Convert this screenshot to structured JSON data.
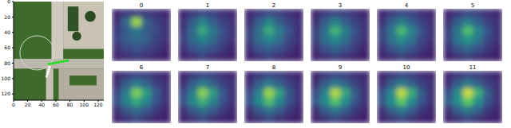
{
  "chart_data": [
    {
      "type": "scatter",
      "xlim": [
        0,
        128
      ],
      "ylim": [
        128,
        0
      ],
      "xticks": [
        0,
        20,
        40,
        60,
        80,
        100,
        120
      ],
      "yticks": [
        0,
        20,
        40,
        60,
        80,
        100,
        120
      ],
      "series": [
        {
          "color": "#ffffff",
          "x": [
            47,
            48,
            49,
            50,
            51
          ],
          "values": [
            97,
            94,
            91,
            88,
            85
          ]
        },
        {
          "color": "#22dd22",
          "x": [
            50,
            53,
            56,
            59,
            62,
            65,
            68,
            71,
            74,
            77
          ],
          "values": [
            81,
            80.5,
            80,
            79.5,
            79,
            78.5,
            78,
            77.5,
            77,
            76.5
          ]
        }
      ]
    },
    {
      "type": "heatmap",
      "title": "0",
      "cells": [
        [
          0.12,
          0.18,
          0.2,
          0.18,
          0.15,
          0.12
        ],
        [
          0.15,
          0.35,
          0.85,
          0.3,
          0.2,
          0.15
        ],
        [
          0.18,
          0.3,
          0.4,
          0.3,
          0.22,
          0.15
        ],
        [
          0.2,
          0.3,
          0.35,
          0.3,
          0.2,
          0.15
        ],
        [
          0.15,
          0.22,
          0.25,
          0.22,
          0.18,
          0.12
        ],
        [
          0.12,
          0.15,
          0.18,
          0.15,
          0.12,
          0.1
        ]
      ]
    },
    {
      "type": "heatmap",
      "title": "1",
      "cells": [
        [
          0.12,
          0.18,
          0.22,
          0.2,
          0.15,
          0.12
        ],
        [
          0.15,
          0.3,
          0.45,
          0.3,
          0.2,
          0.15
        ],
        [
          0.18,
          0.35,
          0.6,
          0.4,
          0.25,
          0.15
        ],
        [
          0.2,
          0.35,
          0.45,
          0.35,
          0.22,
          0.15
        ],
        [
          0.15,
          0.25,
          0.3,
          0.25,
          0.18,
          0.12
        ],
        [
          0.12,
          0.15,
          0.2,
          0.15,
          0.12,
          0.1
        ]
      ]
    },
    {
      "type": "heatmap",
      "title": "2",
      "cells": [
        [
          0.12,
          0.18,
          0.22,
          0.2,
          0.15,
          0.12
        ],
        [
          0.15,
          0.3,
          0.45,
          0.3,
          0.2,
          0.15
        ],
        [
          0.2,
          0.36,
          0.62,
          0.42,
          0.25,
          0.15
        ],
        [
          0.2,
          0.36,
          0.47,
          0.36,
          0.22,
          0.15
        ],
        [
          0.15,
          0.25,
          0.3,
          0.25,
          0.18,
          0.12
        ],
        [
          0.12,
          0.15,
          0.2,
          0.15,
          0.12,
          0.1
        ]
      ]
    },
    {
      "type": "heatmap",
      "title": "3",
      "cells": [
        [
          0.12,
          0.18,
          0.22,
          0.2,
          0.15,
          0.12
        ],
        [
          0.15,
          0.3,
          0.44,
          0.3,
          0.2,
          0.15
        ],
        [
          0.2,
          0.37,
          0.65,
          0.43,
          0.26,
          0.15
        ],
        [
          0.2,
          0.37,
          0.48,
          0.37,
          0.22,
          0.15
        ],
        [
          0.15,
          0.26,
          0.32,
          0.26,
          0.18,
          0.12
        ],
        [
          0.12,
          0.15,
          0.2,
          0.15,
          0.12,
          0.1
        ]
      ]
    },
    {
      "type": "heatmap",
      "title": "4",
      "cells": [
        [
          0.12,
          0.18,
          0.22,
          0.2,
          0.15,
          0.12
        ],
        [
          0.15,
          0.3,
          0.43,
          0.3,
          0.2,
          0.15
        ],
        [
          0.2,
          0.38,
          0.68,
          0.44,
          0.26,
          0.15
        ],
        [
          0.2,
          0.38,
          0.5,
          0.38,
          0.22,
          0.15
        ],
        [
          0.15,
          0.26,
          0.33,
          0.26,
          0.18,
          0.12
        ],
        [
          0.12,
          0.15,
          0.2,
          0.15,
          0.12,
          0.1
        ]
      ]
    },
    {
      "type": "heatmap",
      "title": "5",
      "cells": [
        [
          0.12,
          0.18,
          0.22,
          0.2,
          0.15,
          0.12
        ],
        [
          0.15,
          0.3,
          0.42,
          0.3,
          0.2,
          0.15
        ],
        [
          0.2,
          0.4,
          0.7,
          0.45,
          0.27,
          0.15
        ],
        [
          0.2,
          0.4,
          0.52,
          0.4,
          0.23,
          0.15
        ],
        [
          0.15,
          0.27,
          0.34,
          0.27,
          0.18,
          0.12
        ],
        [
          0.12,
          0.15,
          0.2,
          0.15,
          0.12,
          0.1
        ]
      ]
    },
    {
      "type": "heatmap",
      "title": "6",
      "cells": [
        [
          0.12,
          0.18,
          0.22,
          0.2,
          0.15,
          0.12
        ],
        [
          0.15,
          0.3,
          0.42,
          0.32,
          0.2,
          0.15
        ],
        [
          0.22,
          0.42,
          0.8,
          0.55,
          0.28,
          0.15
        ],
        [
          0.25,
          0.45,
          0.6,
          0.45,
          0.25,
          0.15
        ],
        [
          0.15,
          0.28,
          0.36,
          0.28,
          0.18,
          0.12
        ],
        [
          0.12,
          0.16,
          0.22,
          0.16,
          0.12,
          0.1
        ]
      ]
    },
    {
      "type": "heatmap",
      "title": "7",
      "cells": [
        [
          0.12,
          0.18,
          0.22,
          0.2,
          0.15,
          0.12
        ],
        [
          0.15,
          0.3,
          0.42,
          0.32,
          0.2,
          0.15
        ],
        [
          0.22,
          0.43,
          0.82,
          0.56,
          0.28,
          0.15
        ],
        [
          0.26,
          0.46,
          0.63,
          0.46,
          0.25,
          0.15
        ],
        [
          0.15,
          0.28,
          0.37,
          0.28,
          0.18,
          0.12
        ],
        [
          0.12,
          0.16,
          0.22,
          0.16,
          0.12,
          0.1
        ]
      ]
    },
    {
      "type": "heatmap",
      "title": "8",
      "cells": [
        [
          0.12,
          0.18,
          0.22,
          0.2,
          0.15,
          0.12
        ],
        [
          0.15,
          0.3,
          0.42,
          0.32,
          0.2,
          0.15
        ],
        [
          0.23,
          0.44,
          0.85,
          0.58,
          0.29,
          0.15
        ],
        [
          0.27,
          0.47,
          0.7,
          0.47,
          0.26,
          0.15
        ],
        [
          0.15,
          0.29,
          0.38,
          0.29,
          0.18,
          0.12
        ],
        [
          0.12,
          0.16,
          0.22,
          0.16,
          0.12,
          0.1
        ]
      ]
    },
    {
      "type": "heatmap",
      "title": "9",
      "cells": [
        [
          0.12,
          0.18,
          0.22,
          0.2,
          0.15,
          0.12
        ],
        [
          0.15,
          0.3,
          0.42,
          0.32,
          0.2,
          0.15
        ],
        [
          0.23,
          0.45,
          0.88,
          0.6,
          0.3,
          0.15
        ],
        [
          0.28,
          0.48,
          0.72,
          0.48,
          0.26,
          0.15
        ],
        [
          0.15,
          0.3,
          0.39,
          0.3,
          0.18,
          0.12
        ],
        [
          0.12,
          0.16,
          0.22,
          0.16,
          0.12,
          0.1
        ]
      ]
    },
    {
      "type": "heatmap",
      "title": "10",
      "cells": [
        [
          0.12,
          0.18,
          0.22,
          0.2,
          0.15,
          0.12
        ],
        [
          0.15,
          0.3,
          0.42,
          0.32,
          0.2,
          0.15
        ],
        [
          0.24,
          0.46,
          0.9,
          0.62,
          0.3,
          0.15
        ],
        [
          0.29,
          0.49,
          0.74,
          0.49,
          0.27,
          0.15
        ],
        [
          0.15,
          0.3,
          0.4,
          0.3,
          0.18,
          0.12
        ],
        [
          0.12,
          0.16,
          0.22,
          0.16,
          0.12,
          0.1
        ]
      ]
    },
    {
      "type": "heatmap",
      "title": "11",
      "cells": [
        [
          0.12,
          0.18,
          0.22,
          0.2,
          0.15,
          0.12
        ],
        [
          0.15,
          0.3,
          0.42,
          0.32,
          0.2,
          0.15
        ],
        [
          0.24,
          0.48,
          0.92,
          0.64,
          0.3,
          0.15
        ],
        [
          0.3,
          0.5,
          0.75,
          0.5,
          0.27,
          0.15
        ],
        [
          0.15,
          0.31,
          0.41,
          0.31,
          0.18,
          0.12
        ],
        [
          0.12,
          0.16,
          0.22,
          0.16,
          0.12,
          0.1
        ]
      ]
    }
  ]
}
